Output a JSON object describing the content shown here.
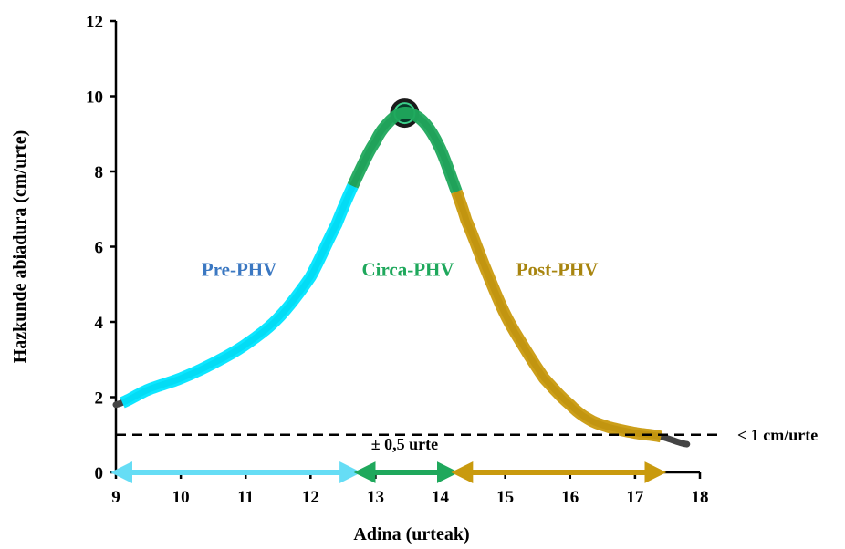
{
  "chart_data": {
    "type": "line",
    "title": "",
    "xlabel": "Adina (urteak)",
    "ylabel": "Hazkunde abiadura (cm/urte)",
    "xlim": [
      9,
      18
    ],
    "ylim": [
      0,
      12
    ],
    "x_ticks": [
      "9",
      "10",
      "11",
      "12",
      "13",
      "14",
      "15",
      "16",
      "17",
      "18"
    ],
    "y_ticks": [
      "0",
      "2",
      "4",
      "6",
      "8",
      "10",
      "12"
    ],
    "grid": false,
    "curve": {
      "x": [
        9.0,
        9.5,
        10.0,
        10.5,
        11.0,
        11.5,
        12.0,
        12.4,
        12.7,
        13.0,
        13.2,
        13.4,
        13.6,
        13.8,
        14.0,
        14.2,
        14.4,
        14.7,
        15.0,
        15.3,
        15.6,
        16.0,
        16.3,
        16.6,
        17.0,
        17.4,
        17.8
      ],
      "y": [
        1.8,
        2.2,
        2.5,
        2.9,
        3.4,
        4.1,
        5.2,
        6.6,
        7.8,
        8.8,
        9.3,
        9.55,
        9.5,
        9.2,
        8.6,
        7.7,
        6.7,
        5.4,
        4.2,
        3.3,
        2.5,
        1.8,
        1.4,
        1.2,
        1.05,
        0.95,
        0.75
      ]
    },
    "peak": {
      "x": 13.45,
      "y": 9.55
    },
    "threshold": {
      "y": 1.0,
      "label": "< 1 cm/urte"
    },
    "phases": [
      {
        "name": "Pre-PHV",
        "x_range": [
          9.1,
          12.65
        ],
        "color": "#00e5ff",
        "label_color": "#3b78c2",
        "label_x": 10.9,
        "label_y": 5.4
      },
      {
        "name": "Circa-PHV",
        "x_range": [
          12.65,
          14.25
        ],
        "color": "#1fa85c",
        "label_color": "#1fa85c",
        "label_x": 13.5,
        "label_y": 5.4
      },
      {
        "name": "Post-PHV",
        "x_range": [
          14.25,
          17.4
        ],
        "color": "#c99a0e",
        "label_color": "#a8850f",
        "label_x": 15.8,
        "label_y": 5.4
      }
    ],
    "arrows": [
      {
        "from": 9.0,
        "to": 12.7,
        "color": "#66ddf5"
      },
      {
        "from": 12.75,
        "to": 14.2,
        "color": "#1fa85c"
      },
      {
        "from": 14.25,
        "to": 17.4,
        "color": "#c99a0e"
      }
    ],
    "annotation": {
      "text": "± 0,5 urte",
      "x": 13.45,
      "y": 0.75
    }
  }
}
